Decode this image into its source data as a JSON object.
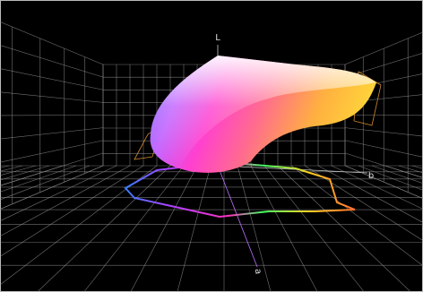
{
  "axes": {
    "l": "L",
    "b": "b",
    "a": "a"
  }
}
